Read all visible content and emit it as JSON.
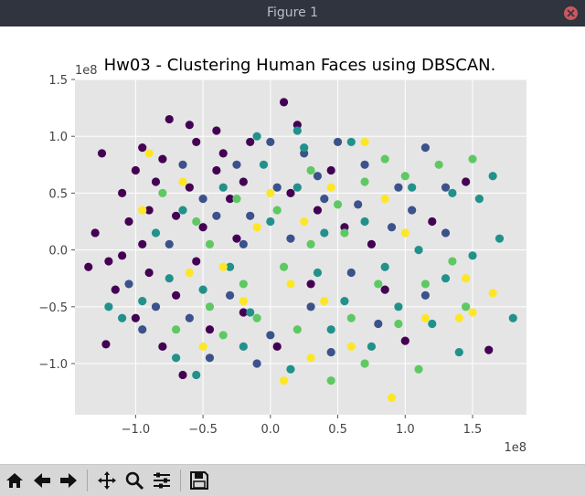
{
  "window": {
    "title": "Figure 1"
  },
  "toolbar": {
    "buttons": [
      {
        "name": "home-button",
        "icon": "home-icon"
      },
      {
        "name": "back-button",
        "icon": "arrow-left-icon"
      },
      {
        "name": "forward-button",
        "icon": "arrow-right-icon"
      },
      {
        "name": "pan-button",
        "icon": "move-icon"
      },
      {
        "name": "zoom-button",
        "icon": "magnifier-icon"
      },
      {
        "name": "configure-subplots-button",
        "icon": "sliders-icon"
      },
      {
        "name": "save-button",
        "icon": "floppy-disk-icon"
      }
    ]
  },
  "chart_data": {
    "type": "scatter",
    "title": "Hw03 - Clustering Human Faces using DBSCAN.",
    "xlabel": "",
    "ylabel": "",
    "x_offset_text": "1e8",
    "y_offset_text": "1e8",
    "x_scale_note": "values in units of 1e8",
    "xlim": [
      -1.45,
      1.9
    ],
    "ylim": [
      -1.45,
      1.5
    ],
    "xticks": [
      -1.0,
      -0.5,
      0.0,
      0.5,
      1.0,
      1.5
    ],
    "xtick_labels": [
      "−1.0",
      "−0.5",
      "0.0",
      "0.5",
      "1.0",
      "1.5"
    ],
    "yticks": [
      -1.0,
      -0.5,
      0.0,
      0.5,
      1.0,
      1.5
    ],
    "ytick_labels": [
      "−1.0",
      "−0.5",
      "0.0",
      "0.5",
      "1.0",
      "1.5"
    ],
    "grid": true,
    "legend": "none",
    "background": "#e5e5e5",
    "colormap": "viridis",
    "palette": [
      "#440154",
      "#3b528b",
      "#21918c",
      "#5ec962",
      "#fde725"
    ],
    "points": [
      [
        -1.25,
        0.85,
        0
      ],
      [
        -1.1,
        0.5,
        0
      ],
      [
        -0.95,
        0.9,
        0
      ],
      [
        -0.75,
        1.15,
        0
      ],
      [
        -0.6,
        1.1,
        0
      ],
      [
        -0.4,
        1.05,
        0
      ],
      [
        -1.3,
        0.15,
        0
      ],
      [
        -1.2,
        -0.1,
        0
      ],
      [
        -1.15,
        -0.35,
        0
      ],
      [
        -1.0,
        -0.6,
        0
      ],
      [
        -0.85,
        0.6,
        0
      ],
      [
        -0.7,
        0.3,
        0
      ],
      [
        -0.55,
        -0.1,
        0
      ],
      [
        -0.4,
        0.7,
        0
      ],
      [
        -0.3,
        0.45,
        0
      ],
      [
        -0.9,
        -0.2,
        0
      ],
      [
        -0.8,
        -0.85,
        0
      ],
      [
        -0.65,
        -1.1,
        0
      ],
      [
        -0.45,
        -0.7,
        0
      ],
      [
        -1.35,
        -0.15,
        0
      ],
      [
        -1.05,
        0.25,
        0
      ],
      [
        -0.95,
        0.05,
        0
      ],
      [
        -0.6,
        0.55,
        0
      ],
      [
        -0.5,
        0.2,
        0
      ],
      [
        -0.35,
        0.85,
        0
      ],
      [
        0.1,
        1.3,
        0
      ],
      [
        0.2,
        1.1,
        0
      ],
      [
        -0.15,
        0.95,
        0
      ],
      [
        0.45,
        0.7,
        0
      ],
      [
        0.55,
        0.2,
        0
      ],
      [
        0.75,
        0.05,
        0
      ],
      [
        0.85,
        -0.35,
        0
      ],
      [
        1.0,
        -0.8,
        0
      ],
      [
        1.2,
        0.25,
        0
      ],
      [
        1.45,
        0.6,
        0
      ],
      [
        1.62,
        -0.88,
        0
      ],
      [
        -1.22,
        -0.83,
        0
      ],
      [
        -0.2,
        -0.55,
        0
      ],
      [
        0.3,
        -0.3,
        0
      ],
      [
        -0.8,
        0.8,
        0
      ],
      [
        -0.7,
        -0.4,
        0
      ],
      [
        -1.0,
        0.7,
        0
      ],
      [
        -0.25,
        0.1,
        0
      ],
      [
        0.05,
        -0.85,
        0
      ],
      [
        0.35,
        0.35,
        0
      ],
      [
        -0.55,
        0.95,
        0
      ],
      [
        -0.2,
        0.6,
        0
      ],
      [
        0.15,
        0.5,
        0
      ],
      [
        -0.9,
        0.35,
        0
      ],
      [
        -1.1,
        -0.05,
        0
      ],
      [
        -0.4,
        0.3,
        1
      ],
      [
        -0.2,
        0.05,
        1
      ],
      [
        0.05,
        0.55,
        1
      ],
      [
        0.25,
        0.85,
        1
      ],
      [
        0.5,
        0.95,
        1
      ],
      [
        0.7,
        0.75,
        1
      ],
      [
        0.95,
        0.55,
        1
      ],
      [
        1.15,
        0.9,
        1
      ],
      [
        0.9,
        0.2,
        1
      ],
      [
        0.6,
        -0.2,
        1
      ],
      [
        0.3,
        -0.5,
        1
      ],
      [
        0.0,
        -0.75,
        1
      ],
      [
        -0.3,
        -0.4,
        1
      ],
      [
        -0.6,
        -0.6,
        1
      ],
      [
        -0.85,
        -0.5,
        1
      ],
      [
        -1.05,
        -0.3,
        1
      ],
      [
        -0.75,
        0.05,
        1
      ],
      [
        -0.5,
        0.45,
        1
      ],
      [
        -0.15,
        0.3,
        1
      ],
      [
        0.15,
        0.1,
        1
      ],
      [
        0.4,
        0.45,
        1
      ],
      [
        0.65,
        0.4,
        1
      ],
      [
        1.05,
        0.35,
        1
      ],
      [
        1.3,
        0.15,
        1
      ],
      [
        1.15,
        -0.4,
        1
      ],
      [
        0.8,
        -0.65,
        1
      ],
      [
        0.45,
        -0.9,
        1
      ],
      [
        -0.1,
        -1.0,
        1
      ],
      [
        -0.45,
        -0.95,
        1
      ],
      [
        -0.95,
        -0.7,
        1
      ],
      [
        -0.25,
        0.75,
        1
      ],
      [
        0.0,
        0.95,
        1
      ],
      [
        0.35,
        0.65,
        1
      ],
      [
        -0.65,
        0.75,
        1
      ],
      [
        1.3,
        0.55,
        1
      ],
      [
        -0.95,
        -0.45,
        2
      ],
      [
        -1.1,
        -0.6,
        2
      ],
      [
        -0.75,
        -0.25,
        2
      ],
      [
        -0.5,
        -0.35,
        2
      ],
      [
        -0.3,
        -0.15,
        2
      ],
      [
        0.0,
        0.25,
        2
      ],
      [
        0.2,
        0.55,
        2
      ],
      [
        0.4,
        0.15,
        2
      ],
      [
        0.55,
        -0.45,
        2
      ],
      [
        0.75,
        -0.85,
        2
      ],
      [
        0.95,
        -0.5,
        2
      ],
      [
        1.1,
        0.0,
        2
      ],
      [
        1.3,
        -0.25,
        2
      ],
      [
        1.5,
        -0.05,
        2
      ],
      [
        1.65,
        0.65,
        2
      ],
      [
        1.55,
        0.45,
        2
      ],
      [
        1.8,
        -0.6,
        2
      ],
      [
        1.4,
        -0.9,
        2
      ],
      [
        0.6,
        0.95,
        2
      ],
      [
        0.25,
        0.9,
        2
      ],
      [
        -0.05,
        0.75,
        2
      ],
      [
        -0.35,
        0.55,
        2
      ],
      [
        -0.65,
        0.35,
        2
      ],
      [
        -0.85,
        0.15,
        2
      ],
      [
        -1.2,
        -0.5,
        2
      ],
      [
        -0.55,
        -1.1,
        2
      ],
      [
        -0.2,
        -0.85,
        2
      ],
      [
        0.15,
        -1.05,
        2
      ],
      [
        0.45,
        -0.7,
        2
      ],
      [
        0.85,
        -0.15,
        2
      ],
      [
        1.05,
        0.55,
        2
      ],
      [
        1.35,
        0.5,
        2
      ],
      [
        0.2,
        1.05,
        2
      ],
      [
        -0.1,
        1.0,
        2
      ],
      [
        -0.7,
        -0.95,
        2
      ],
      [
        0.35,
        -0.2,
        2
      ],
      [
        0.7,
        0.25,
        2
      ],
      [
        -0.15,
        -0.55,
        2
      ],
      [
        1.2,
        -0.65,
        2
      ],
      [
        1.7,
        0.1,
        2
      ],
      [
        -0.7,
        -0.7,
        3
      ],
      [
        -0.45,
        -0.5,
        3
      ],
      [
        -0.2,
        -0.3,
        3
      ],
      [
        0.1,
        -0.15,
        3
      ],
      [
        0.3,
        0.05,
        3
      ],
      [
        0.5,
        0.4,
        3
      ],
      [
        0.7,
        0.6,
        3
      ],
      [
        0.85,
        0.8,
        3
      ],
      [
        1.0,
        0.65,
        3
      ],
      [
        1.25,
        0.75,
        3
      ],
      [
        1.5,
        0.8,
        3
      ],
      [
        1.35,
        -0.1,
        3
      ],
      [
        1.15,
        -0.3,
        3
      ],
      [
        0.95,
        -0.65,
        3
      ],
      [
        0.7,
        -1.0,
        3
      ],
      [
        0.45,
        -1.15,
        3
      ],
      [
        0.2,
        -0.7,
        3
      ],
      [
        -0.1,
        -0.6,
        3
      ],
      [
        -0.35,
        -0.75,
        3
      ],
      [
        -0.8,
        0.5,
        3
      ],
      [
        -0.55,
        0.25,
        3
      ],
      [
        -0.25,
        0.45,
        3
      ],
      [
        0.05,
        0.35,
        3
      ],
      [
        0.3,
        0.7,
        3
      ],
      [
        0.55,
        0.15,
        3
      ],
      [
        0.8,
        -0.3,
        3
      ],
      [
        1.1,
        -1.05,
        3
      ],
      [
        1.45,
        -0.5,
        3
      ],
      [
        0.6,
        -0.6,
        3
      ],
      [
        -0.45,
        0.05,
        3
      ],
      [
        -0.6,
        -0.2,
        4
      ],
      [
        -0.35,
        -0.15,
        4
      ],
      [
        -0.1,
        0.2,
        4
      ],
      [
        0.25,
        0.25,
        4
      ],
      [
        0.45,
        0.55,
        4
      ],
      [
        0.85,
        0.45,
        4
      ],
      [
        0.7,
        0.95,
        4
      ],
      [
        0.6,
        -0.85,
        4
      ],
      [
        0.9,
        -1.3,
        4
      ],
      [
        1.15,
        -0.6,
        4
      ],
      [
        1.5,
        -0.55,
        4
      ],
      [
        1.65,
        -0.38,
        4
      ],
      [
        1.45,
        -0.25,
        4
      ],
      [
        -0.95,
        0.35,
        4
      ],
      [
        -0.9,
        0.85,
        4
      ],
      [
        0.0,
        0.5,
        4
      ],
      [
        -0.2,
        -0.45,
        4
      ],
      [
        0.15,
        -0.3,
        4
      ],
      [
        0.4,
        -0.45,
        4
      ],
      [
        1.0,
        0.15,
        4
      ],
      [
        -0.5,
        -0.85,
        4
      ],
      [
        0.1,
        -1.15,
        4
      ],
      [
        0.3,
        -0.95,
        4
      ],
      [
        1.4,
        -0.6,
        4
      ],
      [
        -0.65,
        0.6,
        4
      ]
    ]
  }
}
